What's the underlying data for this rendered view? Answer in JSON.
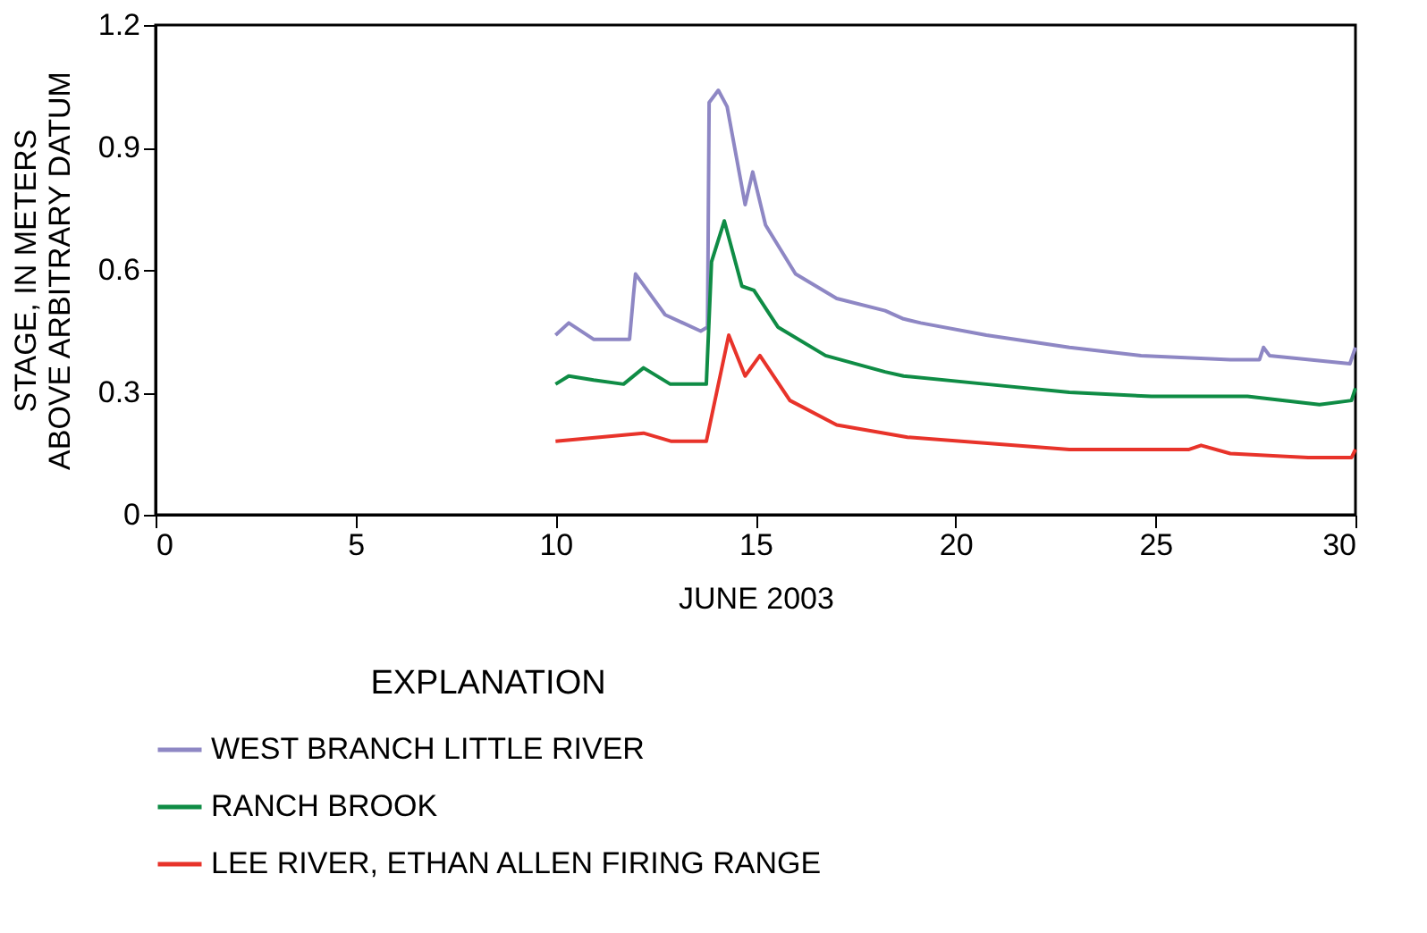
{
  "chart_data": {
    "type": "line",
    "xlabel": "JUNE 2003",
    "ylabel": "STAGE, IN METERS ABOVE ARBITRARY DATUM",
    "legend_title": "EXPLANATION",
    "legend": "bottom",
    "grid": false,
    "xlim": [
      0,
      30
    ],
    "xticks": [
      0,
      5,
      10,
      15,
      20,
      25,
      30
    ],
    "ylim": [
      0,
      1.2
    ],
    "yticks": [
      0,
      0.3,
      0.6,
      0.9,
      1.2
    ],
    "series": [
      {
        "name": "WEST BRANCH LITTLE RIVER",
        "color": "#8e87c4",
        "x": [
          10.0,
          10.33,
          10.95,
          11.85,
          11.95,
          12.0,
          12.74,
          13.63,
          13.8,
          13.84,
          14.07,
          14.29,
          14.74,
          14.93,
          15.25,
          16.0,
          17.03,
          18.24,
          18.7,
          19.13,
          20.77,
          22.85,
          24.64,
          26.87,
          27.6,
          27.7,
          27.85,
          29.86,
          30.0
        ],
        "values": [
          0.44,
          0.47,
          0.43,
          0.43,
          0.54,
          0.59,
          0.49,
          0.45,
          0.46,
          1.01,
          1.04,
          1.0,
          0.76,
          0.84,
          0.71,
          0.59,
          0.53,
          0.5,
          0.48,
          0.47,
          0.44,
          0.41,
          0.39,
          0.38,
          0.38,
          0.41,
          0.39,
          0.37,
          0.41
        ]
      },
      {
        "name": "RANCH BROOK",
        "color": "#0f8c45",
        "x": [
          10.0,
          10.33,
          10.95,
          11.7,
          12.2,
          12.87,
          13.77,
          13.9,
          14.22,
          14.66,
          14.96,
          15.56,
          16.75,
          18.24,
          18.7,
          20.77,
          22.85,
          24.9,
          27.3,
          29.1,
          29.9,
          30.0
        ],
        "values": [
          0.32,
          0.34,
          0.33,
          0.32,
          0.36,
          0.32,
          0.32,
          0.62,
          0.72,
          0.56,
          0.55,
          0.46,
          0.39,
          0.35,
          0.34,
          0.32,
          0.3,
          0.29,
          0.29,
          0.27,
          0.28,
          0.31
        ]
      },
      {
        "name": "LEE RIVER, ETHAN ALLEN FIRING RANGE",
        "color": "#e8332a",
        "x": [
          10.0,
          12.2,
          12.9,
          13.77,
          14.33,
          14.74,
          15.11,
          15.86,
          17.03,
          18.8,
          22.85,
          25.84,
          26.14,
          26.87,
          28.82,
          29.9,
          30.0
        ],
        "values": [
          0.18,
          0.2,
          0.18,
          0.18,
          0.44,
          0.34,
          0.39,
          0.28,
          0.22,
          0.19,
          0.16,
          0.16,
          0.17,
          0.15,
          0.14,
          0.14,
          0.16
        ]
      }
    ]
  }
}
